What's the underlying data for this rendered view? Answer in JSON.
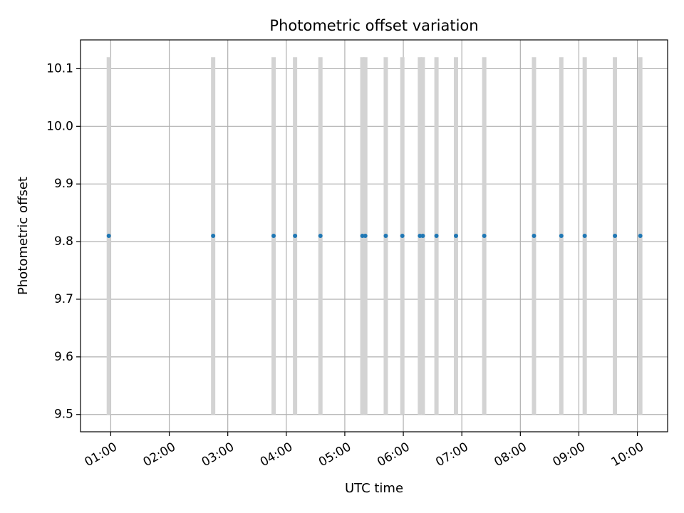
{
  "chart_data": {
    "type": "scatter",
    "title": "Photometric offset variation",
    "xlabel": "UTC time",
    "ylabel": "Photometric offset",
    "grid": true,
    "xlim": [
      "00:29",
      "10:31"
    ],
    "ylim": [
      9.47,
      10.15
    ],
    "x_ticks": [
      "01:00",
      "02:00",
      "03:00",
      "04:00",
      "05:00",
      "06:00",
      "07:00",
      "08:00",
      "09:00",
      "10:00"
    ],
    "y_ticks": [
      9.5,
      9.6,
      9.7,
      9.8,
      9.9,
      10.0,
      10.1
    ],
    "series": [
      {
        "color": "#1f77b4",
        "error_color": "#d3d3d3",
        "x": [
          "00:58",
          "02:45",
          "03:47",
          "04:09",
          "04:35",
          "05:18",
          "05:21",
          "05:42",
          "05:59",
          "06:17",
          "06:20",
          "06:34",
          "06:54",
          "07:23",
          "08:14",
          "08:42",
          "09:06",
          "09:37",
          "10:03"
        ],
        "y": [
          9.81,
          9.81,
          9.81,
          9.81,
          9.81,
          9.81,
          9.81,
          9.81,
          9.81,
          9.81,
          9.81,
          9.81,
          9.81,
          9.81,
          9.81,
          9.81,
          9.81,
          9.81,
          9.81
        ],
        "y_err": [
          0.31,
          0.31,
          0.31,
          0.31,
          0.31,
          0.31,
          0.31,
          0.31,
          0.31,
          0.31,
          0.31,
          0.31,
          0.31,
          0.31,
          0.31,
          0.31,
          0.31,
          0.31,
          0.31
        ]
      }
    ]
  }
}
